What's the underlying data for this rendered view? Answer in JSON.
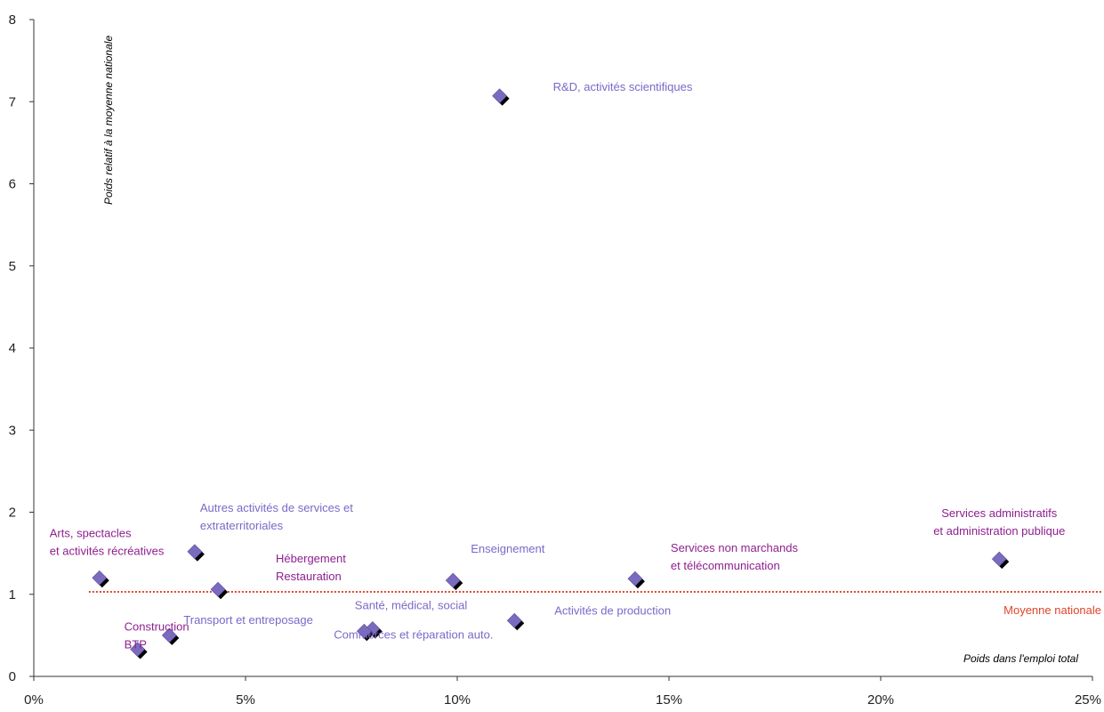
{
  "chart_data": {
    "type": "scatter",
    "xlabel": "Poids dans l'emploi total",
    "ylabel": "Poids relatif à la moyenne nationale",
    "xlim": [
      0,
      25
    ],
    "ylim": [
      0,
      8
    ],
    "x_ticks": [
      0,
      5,
      10,
      15,
      20,
      25
    ],
    "x_tick_labels": [
      "0%",
      "5%",
      "10%",
      "15%",
      "20%",
      "25%"
    ],
    "y_ticks": [
      0,
      1,
      2,
      3,
      4,
      5,
      6,
      7,
      8
    ],
    "y_tick_labels": [
      "0",
      "1",
      "2",
      "3",
      "4",
      "5",
      "6",
      "7",
      "8"
    ],
    "grid": false,
    "reference_line": {
      "y": 1.03,
      "x_from": 1.3,
      "x_to": 25,
      "label": "Moyenne nationale",
      "color": "#e0452e"
    },
    "points": [
      {
        "x": 11.0,
        "y": 7.07,
        "label": [
          "R&D, activités scientifiques"
        ],
        "label_color": "#7b68c8"
      },
      {
        "x": 22.8,
        "y": 1.43,
        "label": [
          "Services administratifs",
          "et administration publique"
        ],
        "label_color": "#8e1f8e"
      },
      {
        "x": 14.2,
        "y": 1.19,
        "label": [
          "Services non marchands",
          "et télécommunication"
        ],
        "label_color": "#8e1f8e"
      },
      {
        "x": 9.9,
        "y": 1.17,
        "label": [
          "Enseignement"
        ],
        "label_color": "#7b68c8"
      },
      {
        "x": 11.35,
        "y": 0.68,
        "label": [
          "Activités de production"
        ],
        "label_color": "#7b68c8"
      },
      {
        "x": 8.0,
        "y": 0.58,
        "label": [
          "Santé, médical, social"
        ],
        "label_color": "#7b68c8"
      },
      {
        "x": 7.8,
        "y": 0.55,
        "label": [
          "Commerces et réparation auto."
        ],
        "label_color": "#7b68c8"
      },
      {
        "x": 4.35,
        "y": 1.06,
        "label": [
          "Hébergement",
          "Restauration"
        ],
        "label_color": "#8e1f8e"
      },
      {
        "x": 3.8,
        "y": 1.52,
        "label": [
          "Autres activités de services et",
          "extraterritoriales"
        ],
        "label_color": "#7b68c8"
      },
      {
        "x": 1.55,
        "y": 1.2,
        "label": [
          "Arts, spectacles",
          "et activités récréatives"
        ],
        "label_color": "#8e1f8e"
      },
      {
        "x": 3.2,
        "y": 0.5,
        "label": [
          "Transport et entreposage"
        ],
        "label_color": "#7b68c8"
      },
      {
        "x": 2.45,
        "y": 0.33,
        "label": [
          "Construction",
          "BTP"
        ],
        "label_color": "#8e1f8e"
      }
    ],
    "marker_color": "#7b6bbf",
    "marker_shadow_color": "#000000"
  }
}
